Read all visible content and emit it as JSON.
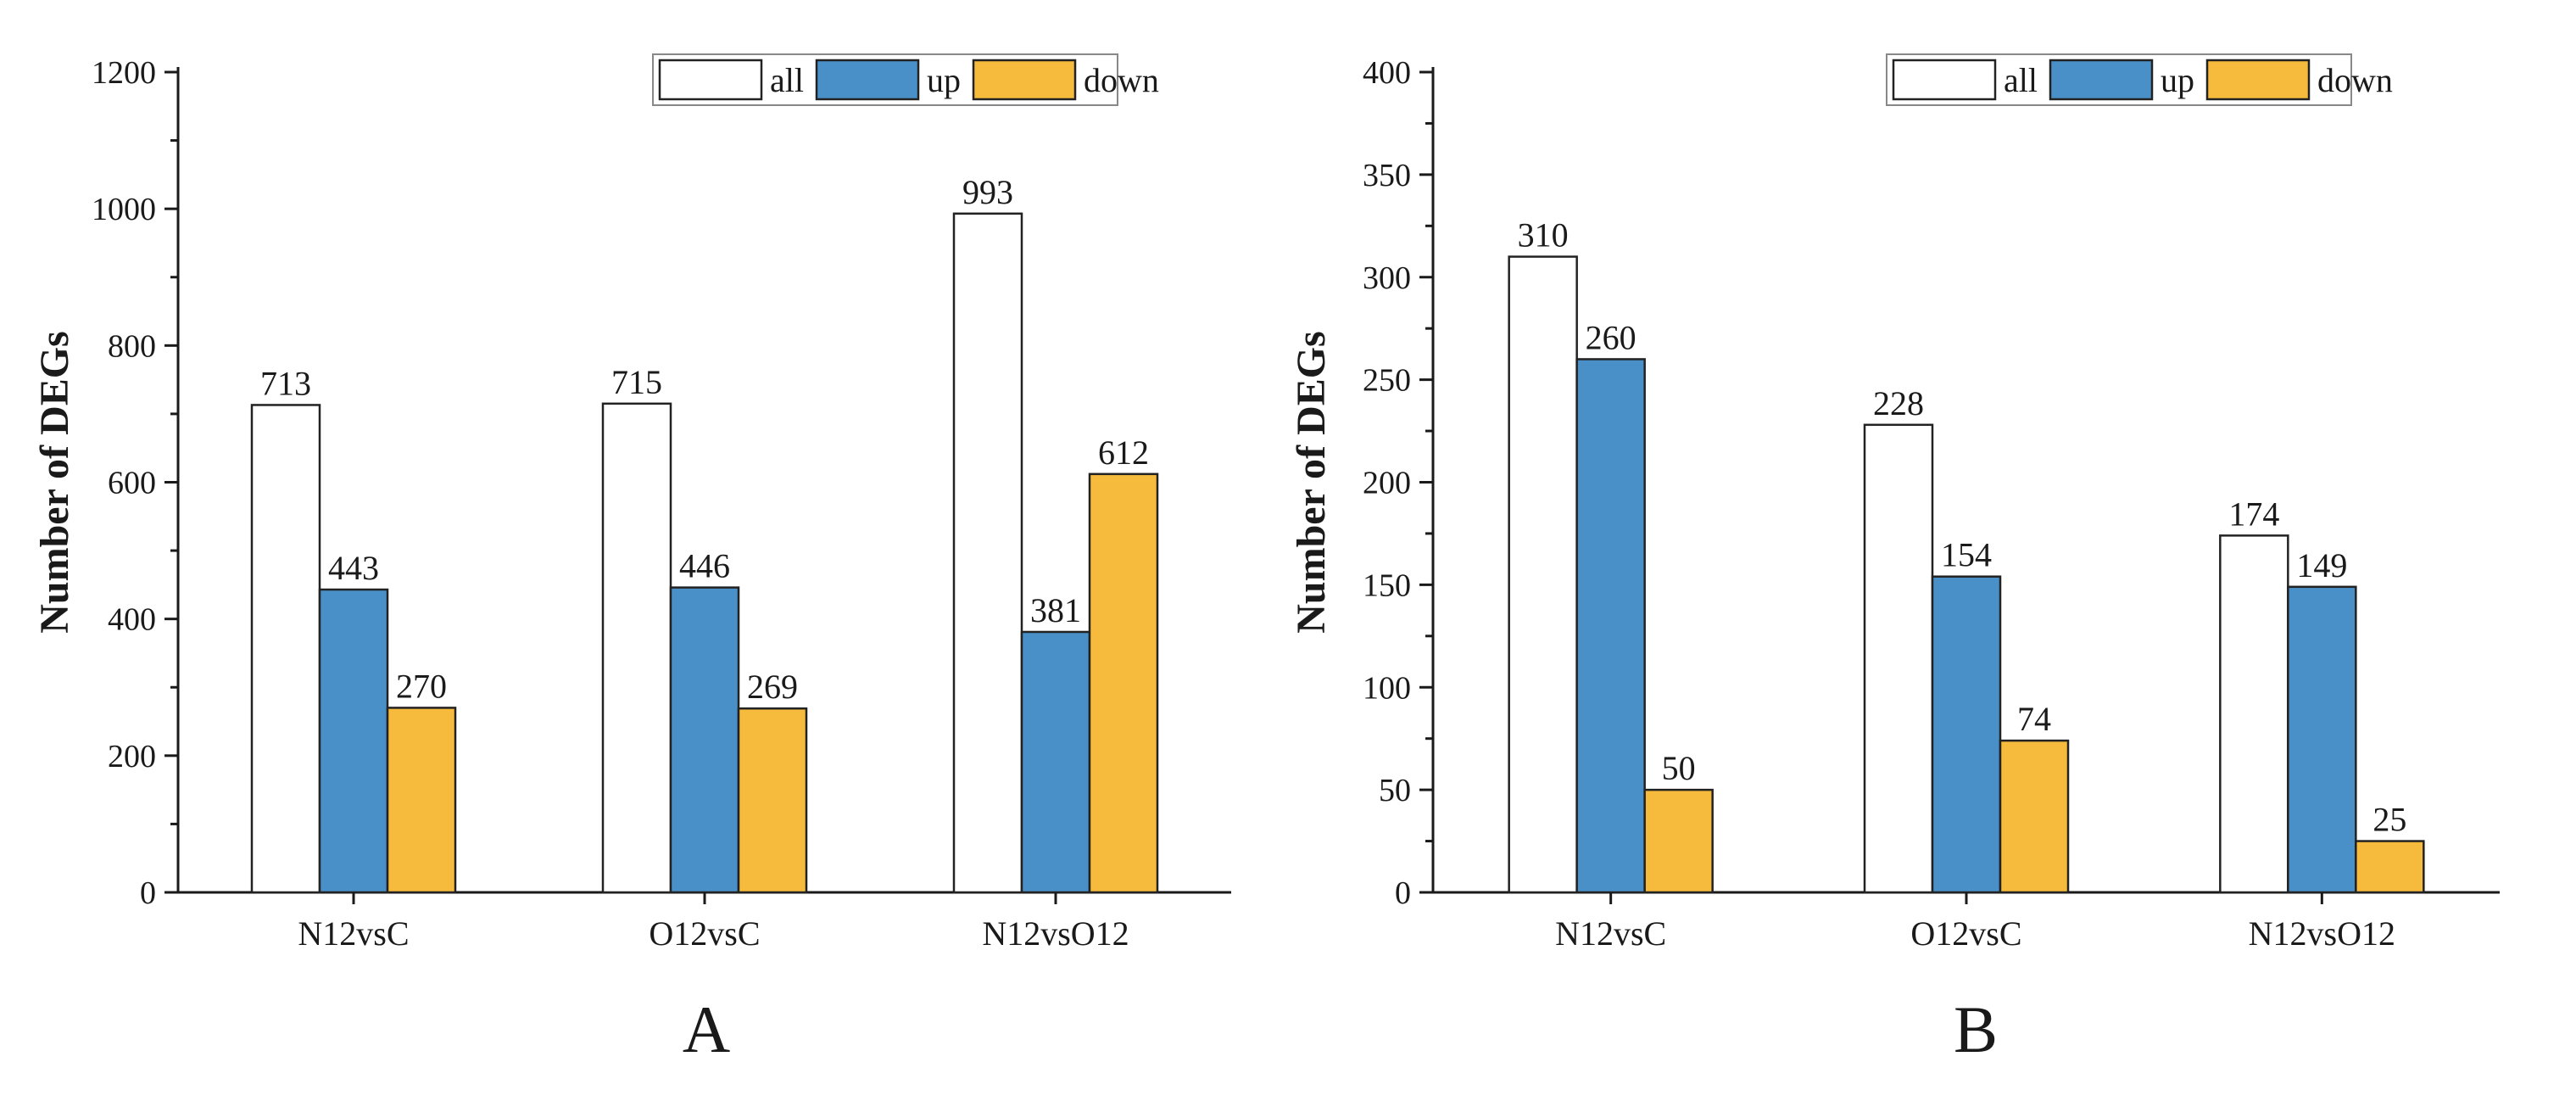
{
  "colors": {
    "all": "#ffffff",
    "up": "#4a90c8",
    "down": "#f6bb3d",
    "stroke": "#222222"
  },
  "legend": [
    "all",
    "up",
    "down"
  ],
  "chart_data": [
    {
      "type": "bar",
      "panel_label": "A",
      "ylabel": "Number of DEGs",
      "ylim": [
        0,
        1200
      ],
      "yticks": [
        0,
        200,
        400,
        600,
        800,
        1000,
        1200
      ],
      "categories": [
        "N12vsC",
        "O12vsC",
        "N12vsO12"
      ],
      "series": [
        {
          "name": "all",
          "values": [
            713,
            715,
            993
          ]
        },
        {
          "name": "up",
          "values": [
            443,
            446,
            381
          ]
        },
        {
          "name": "down",
          "values": [
            270,
            269,
            612
          ]
        }
      ],
      "legend_position": "top-right"
    },
    {
      "type": "bar",
      "panel_label": "B",
      "ylabel": "Number of DEGs",
      "ylim": [
        0,
        400
      ],
      "yticks": [
        0,
        50,
        100,
        150,
        200,
        250,
        300,
        350,
        400
      ],
      "categories": [
        "N12vsC",
        "O12vsC",
        "N12vsO12"
      ],
      "series": [
        {
          "name": "all",
          "values": [
            310,
            228,
            174
          ]
        },
        {
          "name": "up",
          "values": [
            260,
            154,
            149
          ]
        },
        {
          "name": "down",
          "values": [
            50,
            74,
            25
          ]
        }
      ],
      "legend_position": "top-right"
    }
  ]
}
